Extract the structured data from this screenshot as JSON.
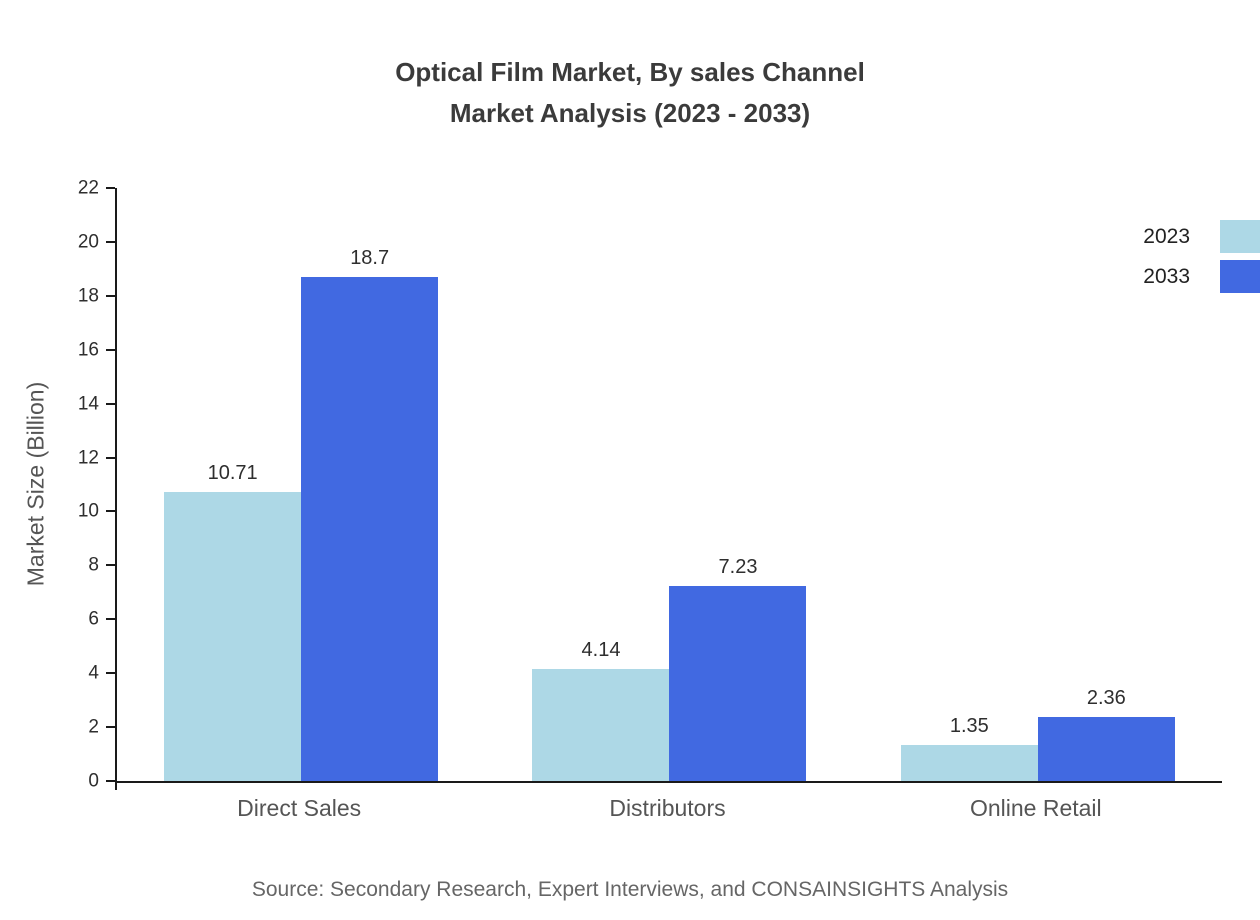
{
  "title": {
    "line1": "Optical Film Market, By sales Channel",
    "line2": "Market Analysis (2023 - 2033)"
  },
  "source": "Source: Secondary Research, Expert Interviews, and CONSAINSIGHTS Analysis",
  "chart_data": {
    "type": "bar",
    "title": "Optical Film Market, By sales Channel Market Analysis (2023 - 2033)",
    "categories": [
      "Direct Sales",
      "Distributors",
      "Online Retail"
    ],
    "series": [
      {
        "name": "2023",
        "color": "#add8e6",
        "values": [
          10.71,
          4.14,
          1.35
        ]
      },
      {
        "name": "2033",
        "color": "#4169e1",
        "values": [
          18.7,
          7.23,
          2.36
        ]
      }
    ],
    "xlabel": "",
    "ylabel": "Market Size (Billion)",
    "ylim": [
      0,
      22
    ],
    "ytick_step": 2,
    "grid": false,
    "legend_position": "top-right"
  }
}
